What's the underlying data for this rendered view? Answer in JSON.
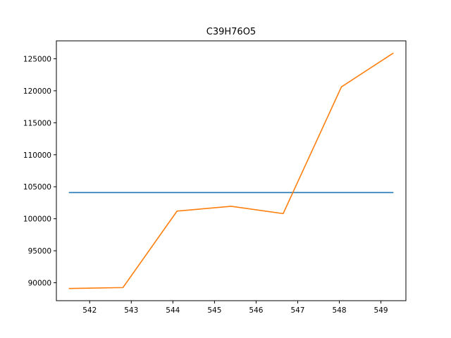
{
  "chart_data": {
    "type": "line",
    "title": "C39H76O5",
    "xlabel": "",
    "ylabel": "",
    "xlim": [
      541.2,
      549.6
    ],
    "ylim": [
      87200,
      127800
    ],
    "x_ticks": [
      542,
      543,
      544,
      545,
      546,
      547,
      548,
      549
    ],
    "y_ticks": [
      90000,
      95000,
      100000,
      105000,
      110000,
      115000,
      120000,
      125000
    ],
    "grid": false,
    "legend": "none",
    "series": [
      {
        "color": "#1f77b4",
        "x": [
          541.5,
          549.3
        ],
        "y": [
          104100,
          104100
        ]
      },
      {
        "color": "#ff7f0e",
        "x": [
          541.5,
          542.8,
          544.1,
          545.4,
          546.65,
          548.05,
          549.3
        ],
        "y": [
          89100,
          89250,
          101200,
          101950,
          100800,
          120600,
          125900
        ]
      }
    ]
  }
}
